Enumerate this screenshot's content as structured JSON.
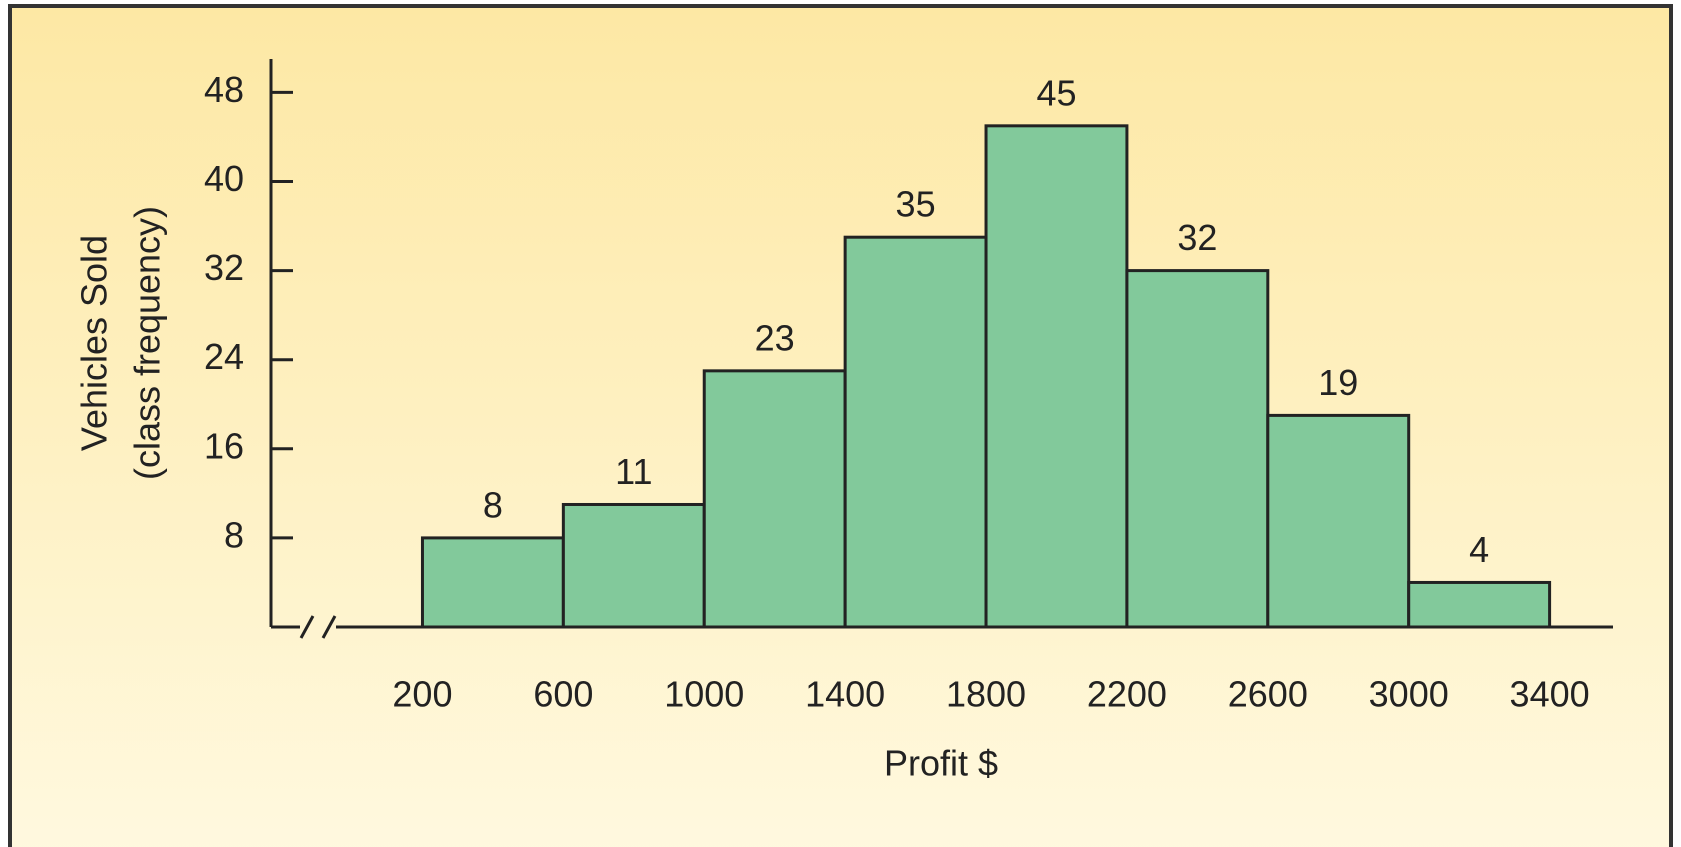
{
  "chart_data": {
    "type": "histogram",
    "xlabel": "Profit $",
    "ylabel": [
      "Vehicles Sold",
      "(class frequency)"
    ],
    "bins": [
      200,
      600,
      1000,
      1400,
      1800,
      2200,
      2600,
      3000,
      3400
    ],
    "values": [
      8,
      11,
      23,
      35,
      45,
      32,
      19,
      4
    ],
    "color": "#82c99b",
    "xlim": [
      -230,
      3580
    ],
    "xticks": [
      200,
      600,
      1000,
      1400,
      1800,
      2200,
      2600,
      3000,
      3400
    ],
    "ylim": [
      0,
      51
    ],
    "yticks": [
      8,
      16,
      24,
      32,
      40,
      48
    ],
    "x_axis_break": true,
    "grid": false
  }
}
